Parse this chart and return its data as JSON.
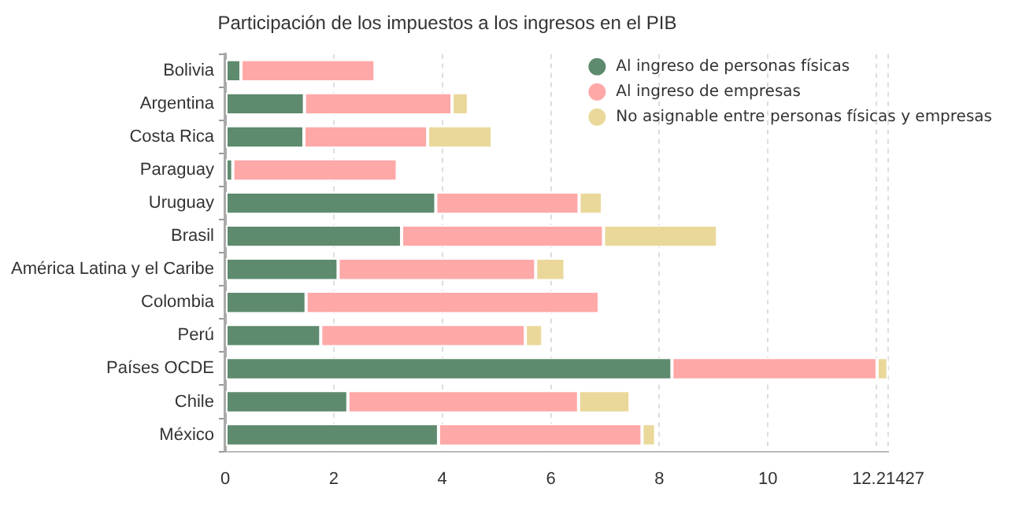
{
  "chart_data": {
    "type": "bar",
    "orientation": "horizontal",
    "stacked": true,
    "title": "Participación de los impuestos a los ingresos en el PIB",
    "categories": [
      "Bolivia",
      "Argentina",
      "Costa Rica",
      "Paraguay",
      "Uruguay",
      "Brasil",
      "América Latina y el Caribe",
      "Colombia",
      "Perú",
      "Países OCDE",
      "Chile",
      "México"
    ],
    "series": [
      {
        "name": "Al ingreso de personas físicas",
        "color": "#5e8a6e",
        "values": [
          0.29,
          1.46,
          1.45,
          0.14,
          3.88,
          3.25,
          2.08,
          1.49,
          1.76,
          8.23,
          2.26,
          3.93
        ]
      },
      {
        "name": "Al ingreso de empresas",
        "color": "#ffa8a8",
        "values": [
          2.47,
          2.72,
          2.28,
          3.03,
          2.64,
          3.72,
          3.64,
          5.4,
          3.77,
          3.78,
          4.25,
          3.75
        ]
      },
      {
        "name": "No asignable entre personas físicas y empresas",
        "color": "#ead89a",
        "values": [
          null,
          0.3,
          1.19,
          null,
          0.43,
          2.1,
          0.54,
          null,
          0.32,
          0.2,
          0.95,
          0.25
        ]
      }
    ],
    "xlim": [
      0,
      12.21427
    ],
    "xticks": [
      0,
      2,
      4,
      6,
      8,
      10,
      {
        "value": 12,
        "label": null
      },
      12.21427
    ],
    "grid": "x",
    "legend": "top right",
    "marker": "circle"
  }
}
